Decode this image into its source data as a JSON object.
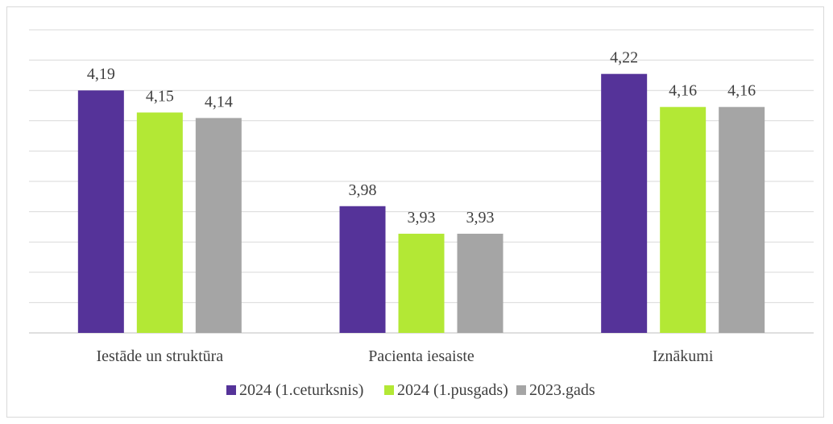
{
  "chart_data": {
    "type": "bar",
    "categories": [
      "Iestāde un struktūra",
      "Pacienta iesaiste",
      "Iznākumi"
    ],
    "series": [
      {
        "name": "2024 (1.ceturksnis)",
        "color": "#553399",
        "values": [
          4.19,
          3.98,
          4.22
        ],
        "labels": [
          "4,19",
          "3,98",
          "4,22"
        ]
      },
      {
        "name": "2024 (1.pusgads)",
        "color": "#b3e835",
        "values": [
          4.15,
          3.93,
          4.16
        ],
        "labels": [
          "4,15",
          "3,93",
          "4,16"
        ]
      },
      {
        "name": "2023.gads",
        "color": "#a5a5a5",
        "values": [
          4.14,
          3.93,
          4.16
        ],
        "labels": [
          "4,14",
          "3,93",
          "4,16"
        ]
      }
    ],
    "ylim": [
      3.75,
      4.3
    ],
    "grid": true,
    "legend": "bottom"
  }
}
